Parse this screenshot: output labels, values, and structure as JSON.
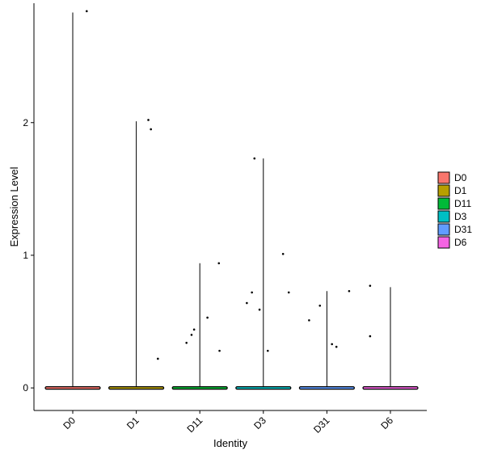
{
  "chart_data": {
    "type": "violin",
    "title": "",
    "xlabel": "Identity",
    "ylabel": "Expression Level",
    "ylim": [
      -0.17,
      2.9
    ],
    "y_ticks": [
      0,
      1,
      2
    ],
    "categories": [
      "D0",
      "D1",
      "D11",
      "D3",
      "D31",
      "D6"
    ],
    "colors": {
      "D0": "#F8766D",
      "D1": "#B79F00",
      "D11": "#00BA38",
      "D3": "#00BFC4",
      "D31": "#619CFF",
      "D6": "#F564E3"
    },
    "series": [
      {
        "name": "D0",
        "max": 2.83,
        "points": [
          {
            "x": 0.22,
            "y": 2.84
          }
        ]
      },
      {
        "name": "D1",
        "max": 2.01,
        "points": [
          {
            "x": 0.19,
            "y": 2.02
          },
          {
            "x": 0.23,
            "y": 1.95
          },
          {
            "x": 0.34,
            "y": 0.22
          }
        ]
      },
      {
        "name": "D11",
        "max": 0.94,
        "points": [
          {
            "x": -0.21,
            "y": 0.34
          },
          {
            "x": -0.13,
            "y": 0.4
          },
          {
            "x": -0.09,
            "y": 0.44
          },
          {
            "x": 0.12,
            "y": 0.53
          },
          {
            "x": 0.3,
            "y": 0.94
          },
          {
            "x": 0.31,
            "y": 0.28
          }
        ]
      },
      {
        "name": "D3",
        "max": 1.73,
        "points": [
          {
            "x": -0.26,
            "y": 0.64
          },
          {
            "x": -0.18,
            "y": 0.72
          },
          {
            "x": -0.14,
            "y": 1.73
          },
          {
            "x": -0.06,
            "y": 0.59
          },
          {
            "x": 0.07,
            "y": 0.28
          },
          {
            "x": 0.31,
            "y": 1.01
          },
          {
            "x": 0.4,
            "y": 0.72
          }
        ]
      },
      {
        "name": "D31",
        "max": 0.73,
        "points": [
          {
            "x": -0.28,
            "y": 0.51
          },
          {
            "x": -0.11,
            "y": 0.62
          },
          {
            "x": 0.08,
            "y": 0.33
          },
          {
            "x": 0.15,
            "y": 0.31
          },
          {
            "x": 0.35,
            "y": 0.73
          }
        ]
      },
      {
        "name": "D6",
        "max": 0.76,
        "points": [
          {
            "x": -0.32,
            "y": 0.77
          },
          {
            "x": -0.32,
            "y": 0.39
          }
        ]
      }
    ],
    "legend": {
      "position": "right"
    },
    "grid": false
  }
}
